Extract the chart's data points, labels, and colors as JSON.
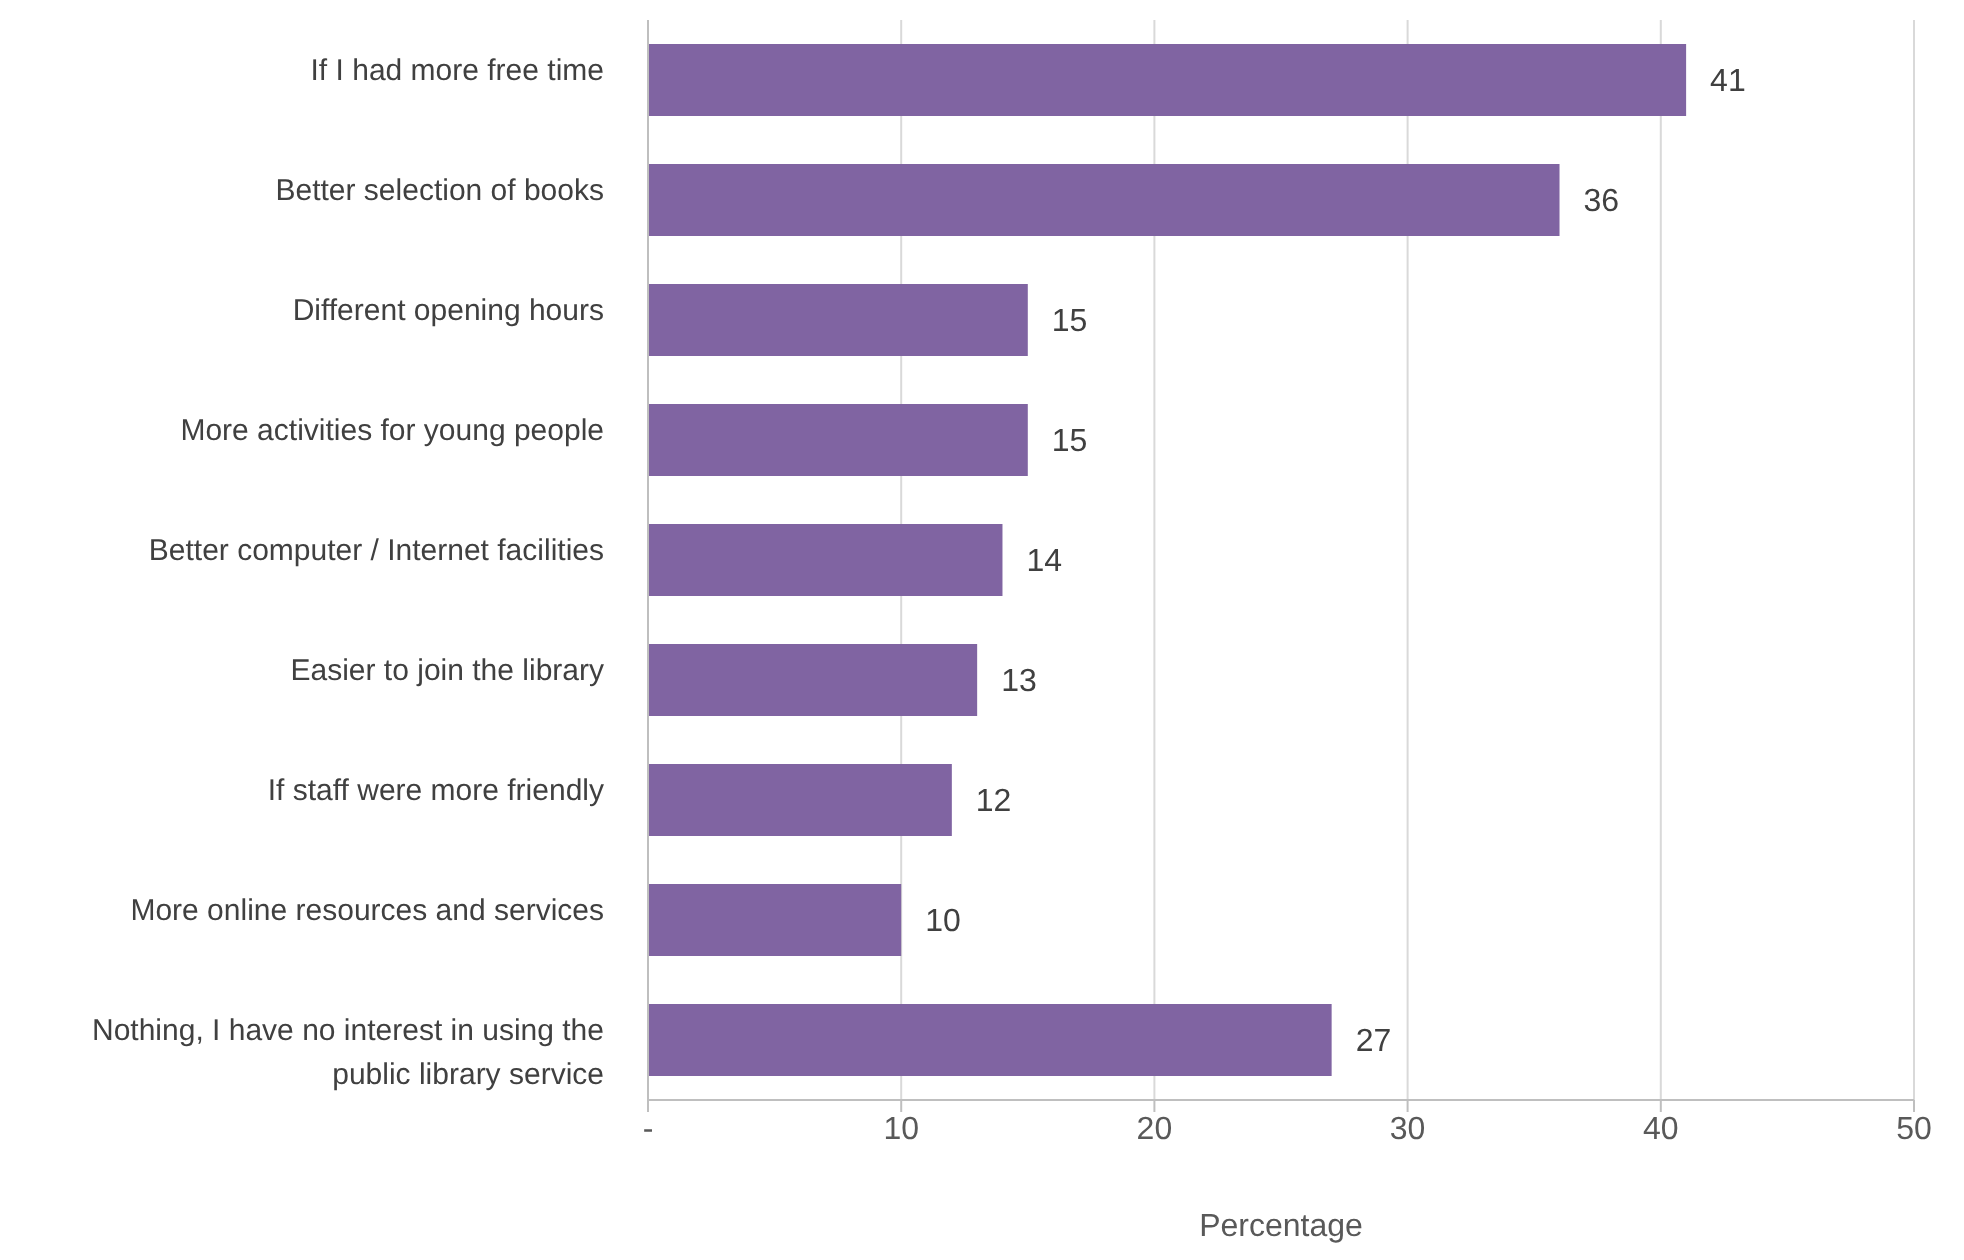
{
  "chart_data": {
    "type": "bar",
    "orientation": "horizontal",
    "xlabel": "Percentage",
    "categories": [
      "If I had more free time",
      "Better selection of books",
      "Different opening hours",
      "More activities for young people",
      "Better computer / Internet facilities",
      "Easier to join the library",
      "If staff were more friendly",
      "More online resources and services",
      "Nothing, I have no interest in using the public library service"
    ],
    "values": [
      41,
      36,
      15,
      15,
      14,
      13,
      12,
      10,
      27
    ],
    "color": "#8064a2",
    "xlim": [
      0,
      50
    ],
    "xticks": [
      {
        "value": 0,
        "label": "-"
      },
      10,
      20,
      30,
      40,
      50
    ],
    "grid": "x",
    "data_labels": true
  }
}
